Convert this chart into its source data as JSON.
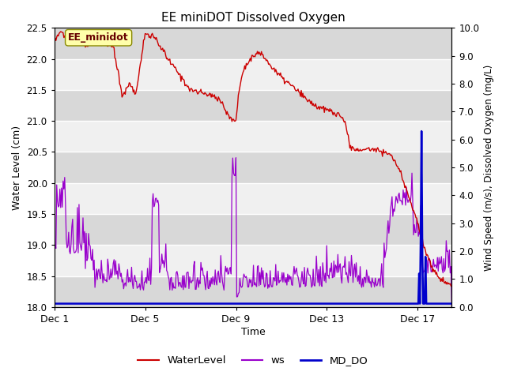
{
  "title": "EE miniDOT Dissolved Oxygen",
  "xlabel": "Time",
  "ylabel_left": "Water Level (cm)",
  "ylabel_right": "Wind Speed (m/s), Dissolved Oxygen (mg/L)",
  "annotation": "EE_minidot",
  "ylim_left": [
    18.0,
    22.5
  ],
  "ylim_right": [
    0.0,
    10.0
  ],
  "x_ticks_labels": [
    "Dec 1",
    "Dec 5",
    "Dec 9",
    "Dec 13",
    "Dec 17"
  ],
  "x_ticks_pos": [
    0,
    4,
    8,
    12,
    16
  ],
  "legend_entries": [
    "WaterLevel",
    "ws",
    "MD_DO"
  ],
  "legend_colors": [
    "#cc0000",
    "#9900cc",
    "#0000cc"
  ],
  "bg_color_light": "#f0f0f0",
  "bg_color_dark": "#d8d8d8",
  "grid_color": "#ffffff",
  "wl_color": "#cc0000",
  "ws_color": "#9900cc",
  "do_color": "#0000cc",
  "fig_bg": "#ffffff"
}
